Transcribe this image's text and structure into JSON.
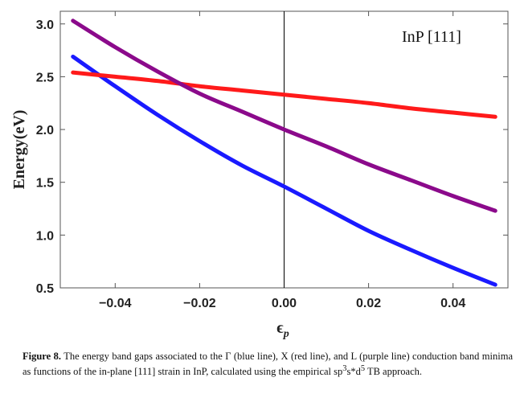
{
  "chart_data": {
    "type": "line",
    "title": "",
    "annotation": "InP [111]",
    "xlabel": "ϵ",
    "xlabel_sub": "p",
    "ylabel": "Energy(eV)",
    "xlim": [
      -0.053,
      0.053
    ],
    "ylim": [
      0.5,
      3.12
    ],
    "xticks": [
      -0.04,
      -0.02,
      0.0,
      0.02,
      0.04
    ],
    "xtick_labels": [
      "−0.04",
      "−0.02",
      "0.00",
      "0.02",
      "0.04"
    ],
    "yticks": [
      0.5,
      1.0,
      1.5,
      2.0,
      2.5,
      3.0
    ],
    "ytick_labels": [
      "0.5",
      "1.0",
      "1.5",
      "2.0",
      "2.5",
      "3.0"
    ],
    "series": [
      {
        "name": "Γ",
        "color": "#1a1aff",
        "x": [
          -0.05,
          -0.04,
          -0.03,
          -0.02,
          -0.01,
          0.0,
          0.01,
          0.02,
          0.03,
          0.04,
          0.05
        ],
        "y": [
          2.69,
          2.41,
          2.14,
          1.89,
          1.66,
          1.46,
          1.25,
          1.04,
          0.86,
          0.69,
          0.53
        ]
      },
      {
        "name": "X",
        "color": "#ff1a1a",
        "x": [
          -0.05,
          -0.04,
          -0.03,
          -0.02,
          -0.01,
          0.0,
          0.01,
          0.02,
          0.03,
          0.04,
          0.05
        ],
        "y": [
          2.54,
          2.5,
          2.46,
          2.41,
          2.37,
          2.33,
          2.29,
          2.25,
          2.2,
          2.16,
          2.12
        ]
      },
      {
        "name": "L",
        "color": "#8b0a8b",
        "x": [
          -0.05,
          -0.04,
          -0.03,
          -0.02,
          -0.01,
          0.0,
          0.01,
          0.02,
          0.03,
          0.04,
          0.05
        ],
        "y": [
          3.03,
          2.78,
          2.55,
          2.34,
          2.17,
          2.0,
          1.84,
          1.67,
          1.52,
          1.37,
          1.23
        ]
      }
    ]
  },
  "caption": {
    "label": "Figure 8.",
    "text_1": "  The energy band gaps associated to the Γ (blue line), X (red line), and L (purple line) conduction band minima as functions of the in-plane [111] strain in InP, calculated using the empirical sp",
    "sup_1": "3",
    "text_2": "s*d",
    "sup_2": "5",
    "text_3": " TB approach."
  }
}
